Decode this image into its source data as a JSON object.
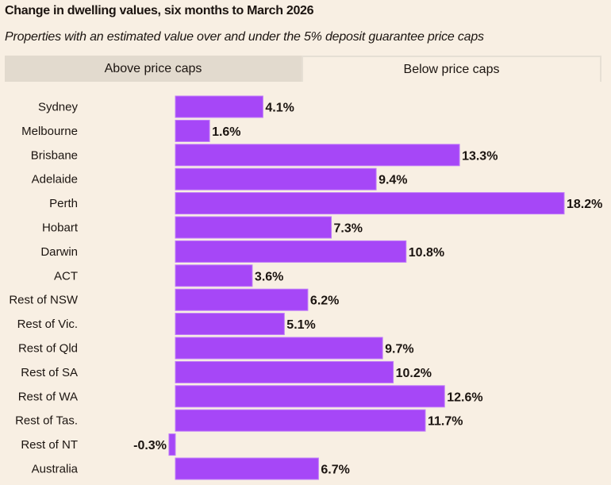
{
  "header": {
    "title": "Change in dwelling values, six months to March 2026",
    "subtitle": "Properties with an estimated value over and under the 5% deposit guarantee price caps"
  },
  "tabs": [
    {
      "label": "Above price caps",
      "active": false
    },
    {
      "label": "Below price caps",
      "active": true
    }
  ],
  "colors": {
    "bar": "#a647f7",
    "background": "#f8efe3",
    "inactive_tab": "#e2dace"
  },
  "chart_data": {
    "type": "bar",
    "orientation": "horizontal",
    "categories": [
      "Sydney",
      "Melbourne",
      "Brisbane",
      "Adelaide",
      "Perth",
      "Hobart",
      "Darwin",
      "ACT",
      "Rest of NSW",
      "Rest of Vic.",
      "Rest of Qld",
      "Rest of SA",
      "Rest of WA",
      "Rest of Tas.",
      "Rest of NT",
      "Australia"
    ],
    "values": [
      4.1,
      1.6,
      13.3,
      9.4,
      18.2,
      7.3,
      10.8,
      3.6,
      6.2,
      5.1,
      9.7,
      10.2,
      12.6,
      11.7,
      -0.3,
      6.7
    ],
    "labels": [
      "4.1%",
      "1.6%",
      "13.3%",
      "9.4%",
      "18.2%",
      "7.3%",
      "10.8%",
      "3.6%",
      "6.2%",
      "5.1%",
      "9.7%",
      "10.2%",
      "12.6%",
      "11.7%",
      "-0.3%",
      "6.7%"
    ],
    "unit": "%",
    "grid": false
  }
}
